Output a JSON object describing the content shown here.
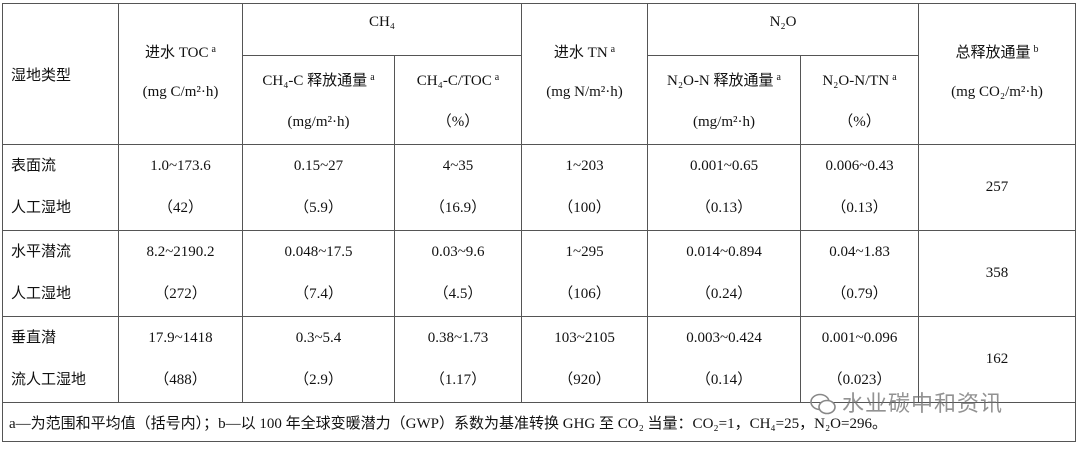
{
  "table": {
    "header": {
      "type": "湿地类型",
      "toc": {
        "label": "进水 TOC",
        "note": "a",
        "unit": "(mg C/m²·h)"
      },
      "ch4": {
        "label": "CH₄"
      },
      "tn": {
        "label": "进水 TN",
        "note": "a",
        "unit": "(mg N/m²·h)"
      },
      "n2o": {
        "label": "N₂O"
      },
      "total": {
        "label": "总释放通量",
        "note": "b",
        "unit": "(mg CO₂/m²·h)"
      },
      "sub": [
        {
          "label": "CH₄-C 释放通量",
          "note": "a",
          "unit": "(mg/m²·h)"
        },
        {
          "label": "CH₄-C/TOC",
          "note": "a",
          "unit": "（%）"
        },
        {
          "label": "N₂O-N 释放通量",
          "note": "a",
          "unit": "(mg/m²·h)"
        },
        {
          "label": "N₂O-N/TN",
          "note": "a",
          "unit": "（%）"
        }
      ]
    },
    "rows": [
      {
        "type": [
          "表面流",
          "人工湿地"
        ],
        "cells": [
          [
            "1.0~173.6",
            "（42）"
          ],
          [
            "0.15~27",
            "（5.9）"
          ],
          [
            "4~35",
            "（16.9）"
          ],
          [
            "1~203",
            "（100）"
          ],
          [
            "0.001~0.65",
            "（0.13）"
          ],
          [
            "0.006~0.43",
            "（0.13）"
          ]
        ],
        "total": "257"
      },
      {
        "type": [
          "水平潜流",
          "人工湿地"
        ],
        "cells": [
          [
            "8.2~2190.2",
            "（272）"
          ],
          [
            "0.048~17.5",
            "（7.4）"
          ],
          [
            "0.03~9.6",
            "（4.5）"
          ],
          [
            "1~295",
            "（106）"
          ],
          [
            "0.014~0.894",
            "（0.24）"
          ],
          [
            "0.04~1.83",
            "（0.79）"
          ]
        ],
        "total": "358"
      },
      {
        "type": [
          "垂直潜",
          "流人工湿地"
        ],
        "cells": [
          [
            "17.9~1418",
            "（488）"
          ],
          [
            "0.3~5.4",
            "（2.9）"
          ],
          [
            "0.38~1.73",
            "（1.17）"
          ],
          [
            "103~2105",
            "（920）"
          ],
          [
            "0.003~0.424",
            "（0.14）"
          ],
          [
            "0.001~0.096",
            "（0.023）"
          ]
        ],
        "total": "162"
      }
    ],
    "footnote": "a—为范围和平均值（括号内）；b—以 100 年全球变暖潜力（GWP）系数为基准转换 GHG 至 CO₂ 当量：CO₂=1，CH₄=25，N₂O=296。"
  },
  "watermark": "水业碳中和资讯"
}
